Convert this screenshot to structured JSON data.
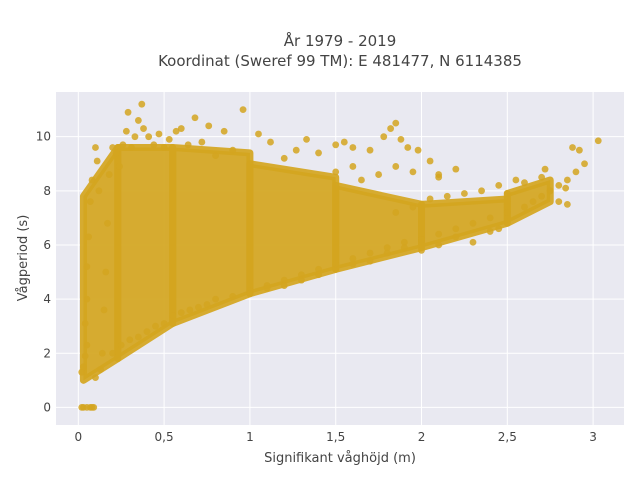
{
  "chart_data": {
    "type": "scatter",
    "title_lines": [
      "År 1979 - 2019",
      "Koordinat (Sweref 99 TM): E 481477, N 6114385"
    ],
    "xlabel": "Signifikant våghöjd (m)",
    "ylabel": "Vågperiod (s)",
    "xlim": [
      -0.13,
      3.18
    ],
    "ylim": [
      -0.65,
      11.65
    ],
    "xticks": [
      {
        "value": 0,
        "label": "0"
      },
      {
        "value": 0.5,
        "label": "0,5"
      },
      {
        "value": 1,
        "label": "1"
      },
      {
        "value": 1.5,
        "label": "1,5"
      },
      {
        "value": 2,
        "label": "2"
      },
      {
        "value": 2.5,
        "label": "2,5"
      },
      {
        "value": 3,
        "label": "3"
      }
    ],
    "yticks": [
      {
        "value": 0,
        "label": "0"
      },
      {
        "value": 2,
        "label": "2"
      },
      {
        "value": 4,
        "label": "4"
      },
      {
        "value": 6,
        "label": "6"
      },
      {
        "value": 8,
        "label": "8"
      },
      {
        "value": 10,
        "label": "10"
      }
    ],
    "grid": true,
    "marker_color": "#D4A520",
    "plot_background": "#E9E9F1",
    "points": [
      [
        0.02,
        0
      ],
      [
        0.03,
        0
      ],
      [
        0.05,
        0
      ],
      [
        0.07,
        0
      ],
      [
        0.08,
        0
      ],
      [
        0.09,
        0
      ],
      [
        0.02,
        1.3
      ],
      [
        0.03,
        1.5
      ],
      [
        0.04,
        1.9
      ],
      [
        0.05,
        2.3
      ],
      [
        0.04,
        3.1
      ],
      [
        0.05,
        4.0
      ],
      [
        0.05,
        5.2
      ],
      [
        0.06,
        6.3
      ],
      [
        0.07,
        7.6
      ],
      [
        0.08,
        8.4
      ],
      [
        0.1,
        9.6
      ],
      [
        0.11,
        9.1
      ],
      [
        0.12,
        8.0
      ],
      [
        0.1,
        1.1
      ],
      [
        0.13,
        1.4
      ],
      [
        0.14,
        2.0
      ],
      [
        0.15,
        3.6
      ],
      [
        0.16,
        5.0
      ],
      [
        0.17,
        6.8
      ],
      [
        0.18,
        8.6
      ],
      [
        0.2,
        9.6
      ],
      [
        0.22,
        9.4
      ],
      [
        0.24,
        8.9
      ],
      [
        0.26,
        9.7
      ],
      [
        0.28,
        10.2
      ],
      [
        0.29,
        10.9
      ],
      [
        0.31,
        9.6
      ],
      [
        0.33,
        10.0
      ],
      [
        0.35,
        10.6
      ],
      [
        0.37,
        11.2
      ],
      [
        0.38,
        10.3
      ],
      [
        0.41,
        10.0
      ],
      [
        0.44,
        9.7
      ],
      [
        0.47,
        10.1
      ],
      [
        0.5,
        9.6
      ],
      [
        0.53,
        9.9
      ],
      [
        0.57,
        10.2
      ],
      [
        0.6,
        10.3
      ],
      [
        0.64,
        9.7
      ],
      [
        0.68,
        10.7
      ],
      [
        0.72,
        9.8
      ],
      [
        0.76,
        10.4
      ],
      [
        0.8,
        9.3
      ],
      [
        0.85,
        10.2
      ],
      [
        0.9,
        9.5
      ],
      [
        0.96,
        11.0
      ],
      [
        1.05,
        10.1
      ],
      [
        1.12,
        9.8
      ],
      [
        1.2,
        9.2
      ],
      [
        1.27,
        9.5
      ],
      [
        1.33,
        9.9
      ],
      [
        1.4,
        9.4
      ],
      [
        1.5,
        9.7
      ],
      [
        1.55,
        9.8
      ],
      [
        1.6,
        9.6
      ],
      [
        1.7,
        9.5
      ],
      [
        1.78,
        10.0
      ],
      [
        1.82,
        10.3
      ],
      [
        1.85,
        10.5
      ],
      [
        1.88,
        9.9
      ],
      [
        1.92,
        9.6
      ],
      [
        1.98,
        9.5
      ],
      [
        2.05,
        9.1
      ],
      [
        2.1,
        8.6
      ],
      [
        0.2,
        2.0
      ],
      [
        0.25,
        2.3
      ],
      [
        0.3,
        2.5
      ],
      [
        0.35,
        2.6
      ],
      [
        0.4,
        2.8
      ],
      [
        0.45,
        3.0
      ],
      [
        0.5,
        3.1
      ],
      [
        0.55,
        3.4
      ],
      [
        0.6,
        3.5
      ],
      [
        0.65,
        3.6
      ],
      [
        0.7,
        3.7
      ],
      [
        0.75,
        3.8
      ],
      [
        0.8,
        4.0
      ],
      [
        0.9,
        4.1
      ],
      [
        1.0,
        4.3
      ],
      [
        1.1,
        4.5
      ],
      [
        1.2,
        4.7
      ],
      [
        1.3,
        4.9
      ],
      [
        1.4,
        5.1
      ],
      [
        1.5,
        5.3
      ],
      [
        1.6,
        5.5
      ],
      [
        1.7,
        5.7
      ],
      [
        1.8,
        5.9
      ],
      [
        1.9,
        6.1
      ],
      [
        2.0,
        6.2
      ],
      [
        2.1,
        6.4
      ],
      [
        2.2,
        6.6
      ],
      [
        2.3,
        6.8
      ],
      [
        2.4,
        7.0
      ],
      [
        2.5,
        7.2
      ],
      [
        2.6,
        7.4
      ],
      [
        2.65,
        7.6
      ],
      [
        2.7,
        7.8
      ],
      [
        2.75,
        8.0
      ],
      [
        2.8,
        8.2
      ],
      [
        2.85,
        8.4
      ],
      [
        2.9,
        8.7
      ],
      [
        2.95,
        9.0
      ],
      [
        3.03,
        9.85
      ],
      [
        2.88,
        9.6
      ],
      [
        2.92,
        9.5
      ],
      [
        2.84,
        8.1
      ],
      [
        2.8,
        7.6
      ],
      [
        2.85,
        7.5
      ],
      [
        2.7,
        8.5
      ],
      [
        2.72,
        8.8
      ],
      [
        2.6,
        8.3
      ],
      [
        2.5,
        7.9
      ],
      [
        2.45,
        6.6
      ],
      [
        2.4,
        6.5
      ],
      [
        2.3,
        6.1
      ],
      [
        2.2,
        6.3
      ],
      [
        2.1,
        6.0
      ],
      [
        2.0,
        5.8
      ],
      [
        1.9,
        5.9
      ],
      [
        1.8,
        5.7
      ],
      [
        1.7,
        5.4
      ],
      [
        1.6,
        5.3
      ],
      [
        1.5,
        5.1
      ],
      [
        1.4,
        4.9
      ],
      [
        1.3,
        4.7
      ],
      [
        1.2,
        4.5
      ],
      [
        1.1,
        4.4
      ],
      [
        1.0,
        4.2
      ],
      [
        2.55,
        8.4
      ],
      [
        2.45,
        8.2
      ],
      [
        2.35,
        8.0
      ],
      [
        2.25,
        7.9
      ],
      [
        2.15,
        7.8
      ],
      [
        2.05,
        7.7
      ],
      [
        1.95,
        7.4
      ],
      [
        1.85,
        7.2
      ],
      [
        2.2,
        8.8
      ],
      [
        2.1,
        8.5
      ],
      [
        1.95,
        8.7
      ],
      [
        1.85,
        8.9
      ],
      [
        1.75,
        8.6
      ],
      [
        1.65,
        8.4
      ],
      [
        1.6,
        8.9
      ],
      [
        1.5,
        8.7
      ]
    ],
    "density_bands": [
      {
        "x0": 0.03,
        "x1": 0.23,
        "lo0": 1.0,
        "lo1": 1.8,
        "hi0": 7.8,
        "hi1": 9.6
      },
      {
        "x0": 0.23,
        "x1": 0.55,
        "lo0": 1.8,
        "lo1": 3.1,
        "hi0": 9.6,
        "hi1": 9.6
      },
      {
        "x0": 0.55,
        "x1": 1.0,
        "lo0": 3.1,
        "lo1": 4.2,
        "hi0": 9.6,
        "hi1": 9.4
      },
      {
        "x0": 1.0,
        "x1": 1.5,
        "lo0": 4.2,
        "lo1": 5.1,
        "hi0": 9.0,
        "hi1": 8.5
      },
      {
        "x0": 1.5,
        "x1": 2.0,
        "lo0": 5.1,
        "lo1": 5.9,
        "hi0": 8.2,
        "hi1": 7.5
      },
      {
        "x0": 2.0,
        "x1": 2.5,
        "lo0": 5.9,
        "lo1": 6.8,
        "hi0": 7.5,
        "hi1": 7.7
      },
      {
        "x0": 2.5,
        "x1": 2.75,
        "lo0": 6.8,
        "lo1": 7.6,
        "hi0": 7.9,
        "hi1": 8.4
      }
    ]
  }
}
